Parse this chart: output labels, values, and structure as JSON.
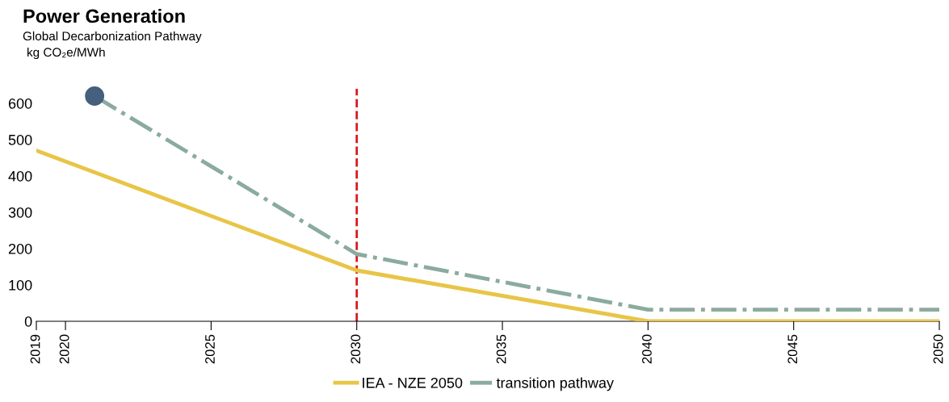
{
  "chart_data": {
    "type": "line",
    "title": "Power Generation",
    "subtitle": "Global Decarbonization Pathway",
    "ylabel": "kg CO₂e/MWh",
    "series": [
      {
        "name": "IEA - NZE 2050",
        "color": "#e8c547",
        "x": [
          2019,
          2030,
          2040,
          2050
        ],
        "values": [
          470,
          140,
          0,
          0
        ],
        "line_style": "solid"
      },
      {
        "name": "transition pathway",
        "color": "#8aab9e",
        "x": [
          2021,
          2030,
          2040,
          2050
        ],
        "values": [
          620,
          185,
          32,
          32
        ],
        "line_style": "dashdot"
      },
      {
        "type": "scatter",
        "color": "#44607e",
        "x": [
          2021
        ],
        "values": [
          620
        ],
        "marker": "circle"
      }
    ],
    "xlim": [
      2019,
      2050
    ],
    "xticks": [
      2019,
      2020,
      2025,
      2030,
      2035,
      2040,
      2045,
      2050
    ],
    "ylim": [
      0,
      640
    ],
    "yticks": [
      0,
      100,
      200,
      300,
      400,
      500,
      600
    ],
    "ref_lines": [
      {
        "axis": "x",
        "value": 2030,
        "color": "#d7191c",
        "line_style": "dashed"
      }
    ],
    "grid": false,
    "legend": "bottom"
  }
}
